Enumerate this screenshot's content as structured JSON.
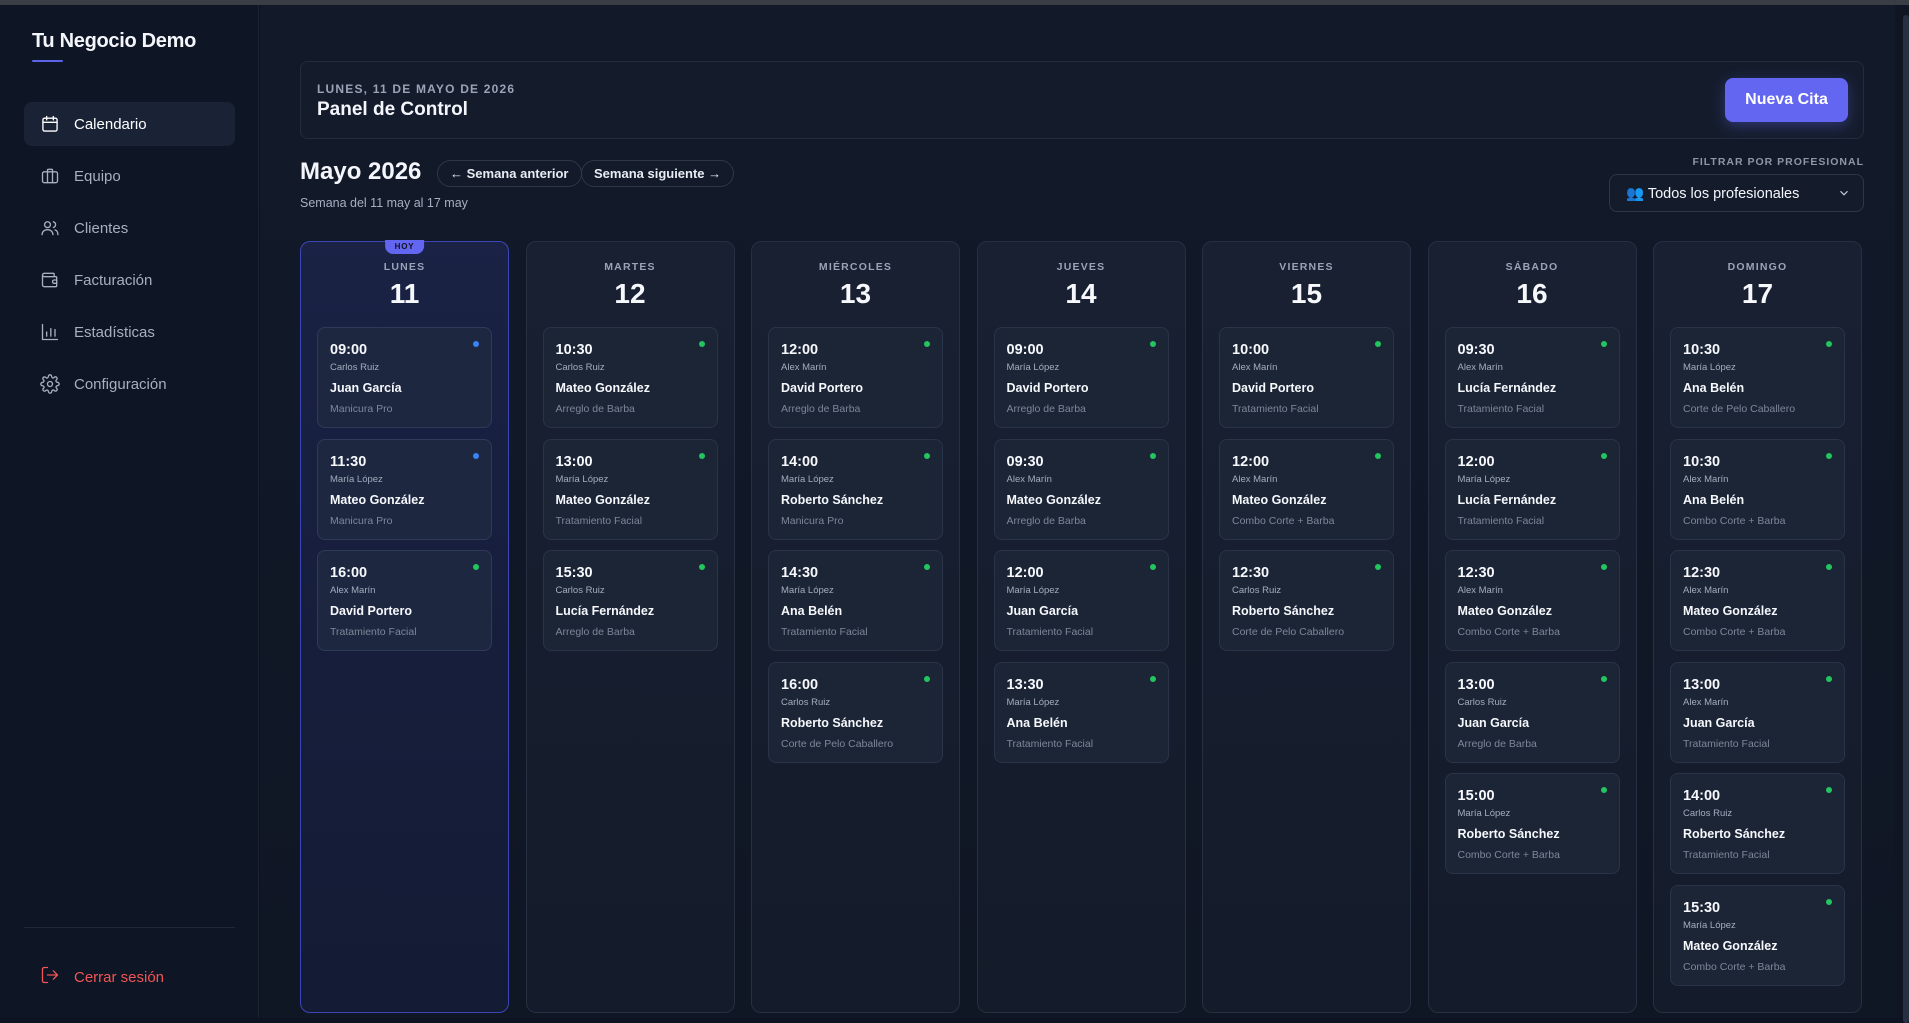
{
  "app": {
    "brand": "Tu Negocio Demo"
  },
  "sidebar": {
    "items": [
      {
        "label": "Calendario",
        "icon": "calendar-icon",
        "active": true
      },
      {
        "label": "Equipo",
        "icon": "briefcase-icon",
        "active": false
      },
      {
        "label": "Clientes",
        "icon": "users-icon",
        "active": false
      },
      {
        "label": "Facturación",
        "icon": "wallet-icon",
        "active": false
      },
      {
        "label": "Estadísticas",
        "icon": "bar-chart-icon",
        "active": false
      },
      {
        "label": "Configuración",
        "icon": "gear-icon",
        "active": false
      }
    ],
    "logout_label": "Cerrar sesión"
  },
  "header": {
    "date": "LUNES, 11 DE MAYO DE 2026",
    "title": "Panel de Control",
    "new_button": "Nueva Cita"
  },
  "week": {
    "title": "Mayo 2026",
    "prev_label": "← Semana anterior",
    "next_label": "Semana siguiente →",
    "subtitle": "Semana del 11 may al 17 may"
  },
  "filter": {
    "label": "FILTRAR POR PROFESIONAL",
    "selected": "👥 Todos los profesionales"
  },
  "colors": {
    "accent": "#6366f1",
    "status_confirmed": "#22c55e",
    "status_pending": "#3b82f6",
    "danger": "#f25555"
  },
  "calendar": {
    "today_badge": "HOY",
    "days": [
      {
        "name": "LUNES",
        "num": "11",
        "today": true,
        "appointments": [
          {
            "time": "09:00",
            "staff": "Carlos Ruiz",
            "client": "Juan García",
            "service": "Manicura Pro",
            "status": "pending"
          },
          {
            "time": "11:30",
            "staff": "María López",
            "client": "Mateo González",
            "service": "Manicura Pro",
            "status": "pending"
          },
          {
            "time": "16:00",
            "staff": "Alex Marín",
            "client": "David Portero",
            "service": "Tratamiento Facial",
            "status": "confirmed"
          }
        ]
      },
      {
        "name": "MARTES",
        "num": "12",
        "today": false,
        "appointments": [
          {
            "time": "10:30",
            "staff": "Carlos Ruiz",
            "client": "Mateo González",
            "service": "Arreglo de Barba",
            "status": "confirmed"
          },
          {
            "time": "13:00",
            "staff": "María López",
            "client": "Mateo González",
            "service": "Tratamiento Facial",
            "status": "confirmed"
          },
          {
            "time": "15:30",
            "staff": "Carlos Ruiz",
            "client": "Lucía Fernández",
            "service": "Arreglo de Barba",
            "status": "confirmed"
          }
        ]
      },
      {
        "name": "MIÉRCOLES",
        "num": "13",
        "today": false,
        "appointments": [
          {
            "time": "12:00",
            "staff": "Alex Marín",
            "client": "David Portero",
            "service": "Arreglo de Barba",
            "status": "confirmed"
          },
          {
            "time": "14:00",
            "staff": "María López",
            "client": "Roberto Sánchez",
            "service": "Manicura Pro",
            "status": "confirmed"
          },
          {
            "time": "14:30",
            "staff": "María López",
            "client": "Ana Belén",
            "service": "Tratamiento Facial",
            "status": "confirmed"
          },
          {
            "time": "16:00",
            "staff": "Carlos Ruiz",
            "client": "Roberto Sánchez",
            "service": "Corte de Pelo Caballero",
            "status": "confirmed"
          }
        ]
      },
      {
        "name": "JUEVES",
        "num": "14",
        "today": false,
        "appointments": [
          {
            "time": "09:00",
            "staff": "María López",
            "client": "David Portero",
            "service": "Arreglo de Barba",
            "status": "confirmed"
          },
          {
            "time": "09:30",
            "staff": "Alex Marín",
            "client": "Mateo González",
            "service": "Arreglo de Barba",
            "status": "confirmed"
          },
          {
            "time": "12:00",
            "staff": "María López",
            "client": "Juan García",
            "service": "Tratamiento Facial",
            "status": "confirmed"
          },
          {
            "time": "13:30",
            "staff": "María López",
            "client": "Ana Belén",
            "service": "Tratamiento Facial",
            "status": "confirmed"
          }
        ]
      },
      {
        "name": "VIERNES",
        "num": "15",
        "today": false,
        "appointments": [
          {
            "time": "10:00",
            "staff": "Alex Marín",
            "client": "David Portero",
            "service": "Tratamiento Facial",
            "status": "confirmed"
          },
          {
            "time": "12:00",
            "staff": "Alex Marín",
            "client": "Mateo González",
            "service": "Combo Corte + Barba",
            "status": "confirmed"
          },
          {
            "time": "12:30",
            "staff": "Carlos Ruiz",
            "client": "Roberto Sánchez",
            "service": "Corte de Pelo Caballero",
            "status": "confirmed"
          }
        ]
      },
      {
        "name": "SÁBADO",
        "num": "16",
        "today": false,
        "appointments": [
          {
            "time": "09:30",
            "staff": "Alex Marín",
            "client": "Lucía Fernández",
            "service": "Tratamiento Facial",
            "status": "confirmed"
          },
          {
            "time": "12:00",
            "staff": "María López",
            "client": "Lucía Fernández",
            "service": "Tratamiento Facial",
            "status": "confirmed"
          },
          {
            "time": "12:30",
            "staff": "Alex Marín",
            "client": "Mateo González",
            "service": "Combo Corte + Barba",
            "status": "confirmed"
          },
          {
            "time": "13:00",
            "staff": "Carlos Ruiz",
            "client": "Juan García",
            "service": "Arreglo de Barba",
            "status": "confirmed"
          },
          {
            "time": "15:00",
            "staff": "María López",
            "client": "Roberto Sánchez",
            "service": "Combo Corte + Barba",
            "status": "confirmed"
          }
        ]
      },
      {
        "name": "DOMINGO",
        "num": "17",
        "today": false,
        "appointments": [
          {
            "time": "10:30",
            "staff": "María López",
            "client": "Ana Belén",
            "service": "Corte de Pelo Caballero",
            "status": "confirmed"
          },
          {
            "time": "10:30",
            "staff": "Alex Marín",
            "client": "Ana Belén",
            "service": "Combo Corte + Barba",
            "status": "confirmed"
          },
          {
            "time": "12:30",
            "staff": "Alex Marín",
            "client": "Mateo González",
            "service": "Combo Corte + Barba",
            "status": "confirmed"
          },
          {
            "time": "13:00",
            "staff": "Alex Marín",
            "client": "Juan García",
            "service": "Tratamiento Facial",
            "status": "confirmed"
          },
          {
            "time": "14:00",
            "staff": "Carlos Ruiz",
            "client": "Roberto Sánchez",
            "service": "Tratamiento Facial",
            "status": "confirmed"
          },
          {
            "time": "15:30",
            "staff": "María López",
            "client": "Mateo González",
            "service": "Combo Corte + Barba",
            "status": "confirmed"
          }
        ]
      }
    ]
  }
}
